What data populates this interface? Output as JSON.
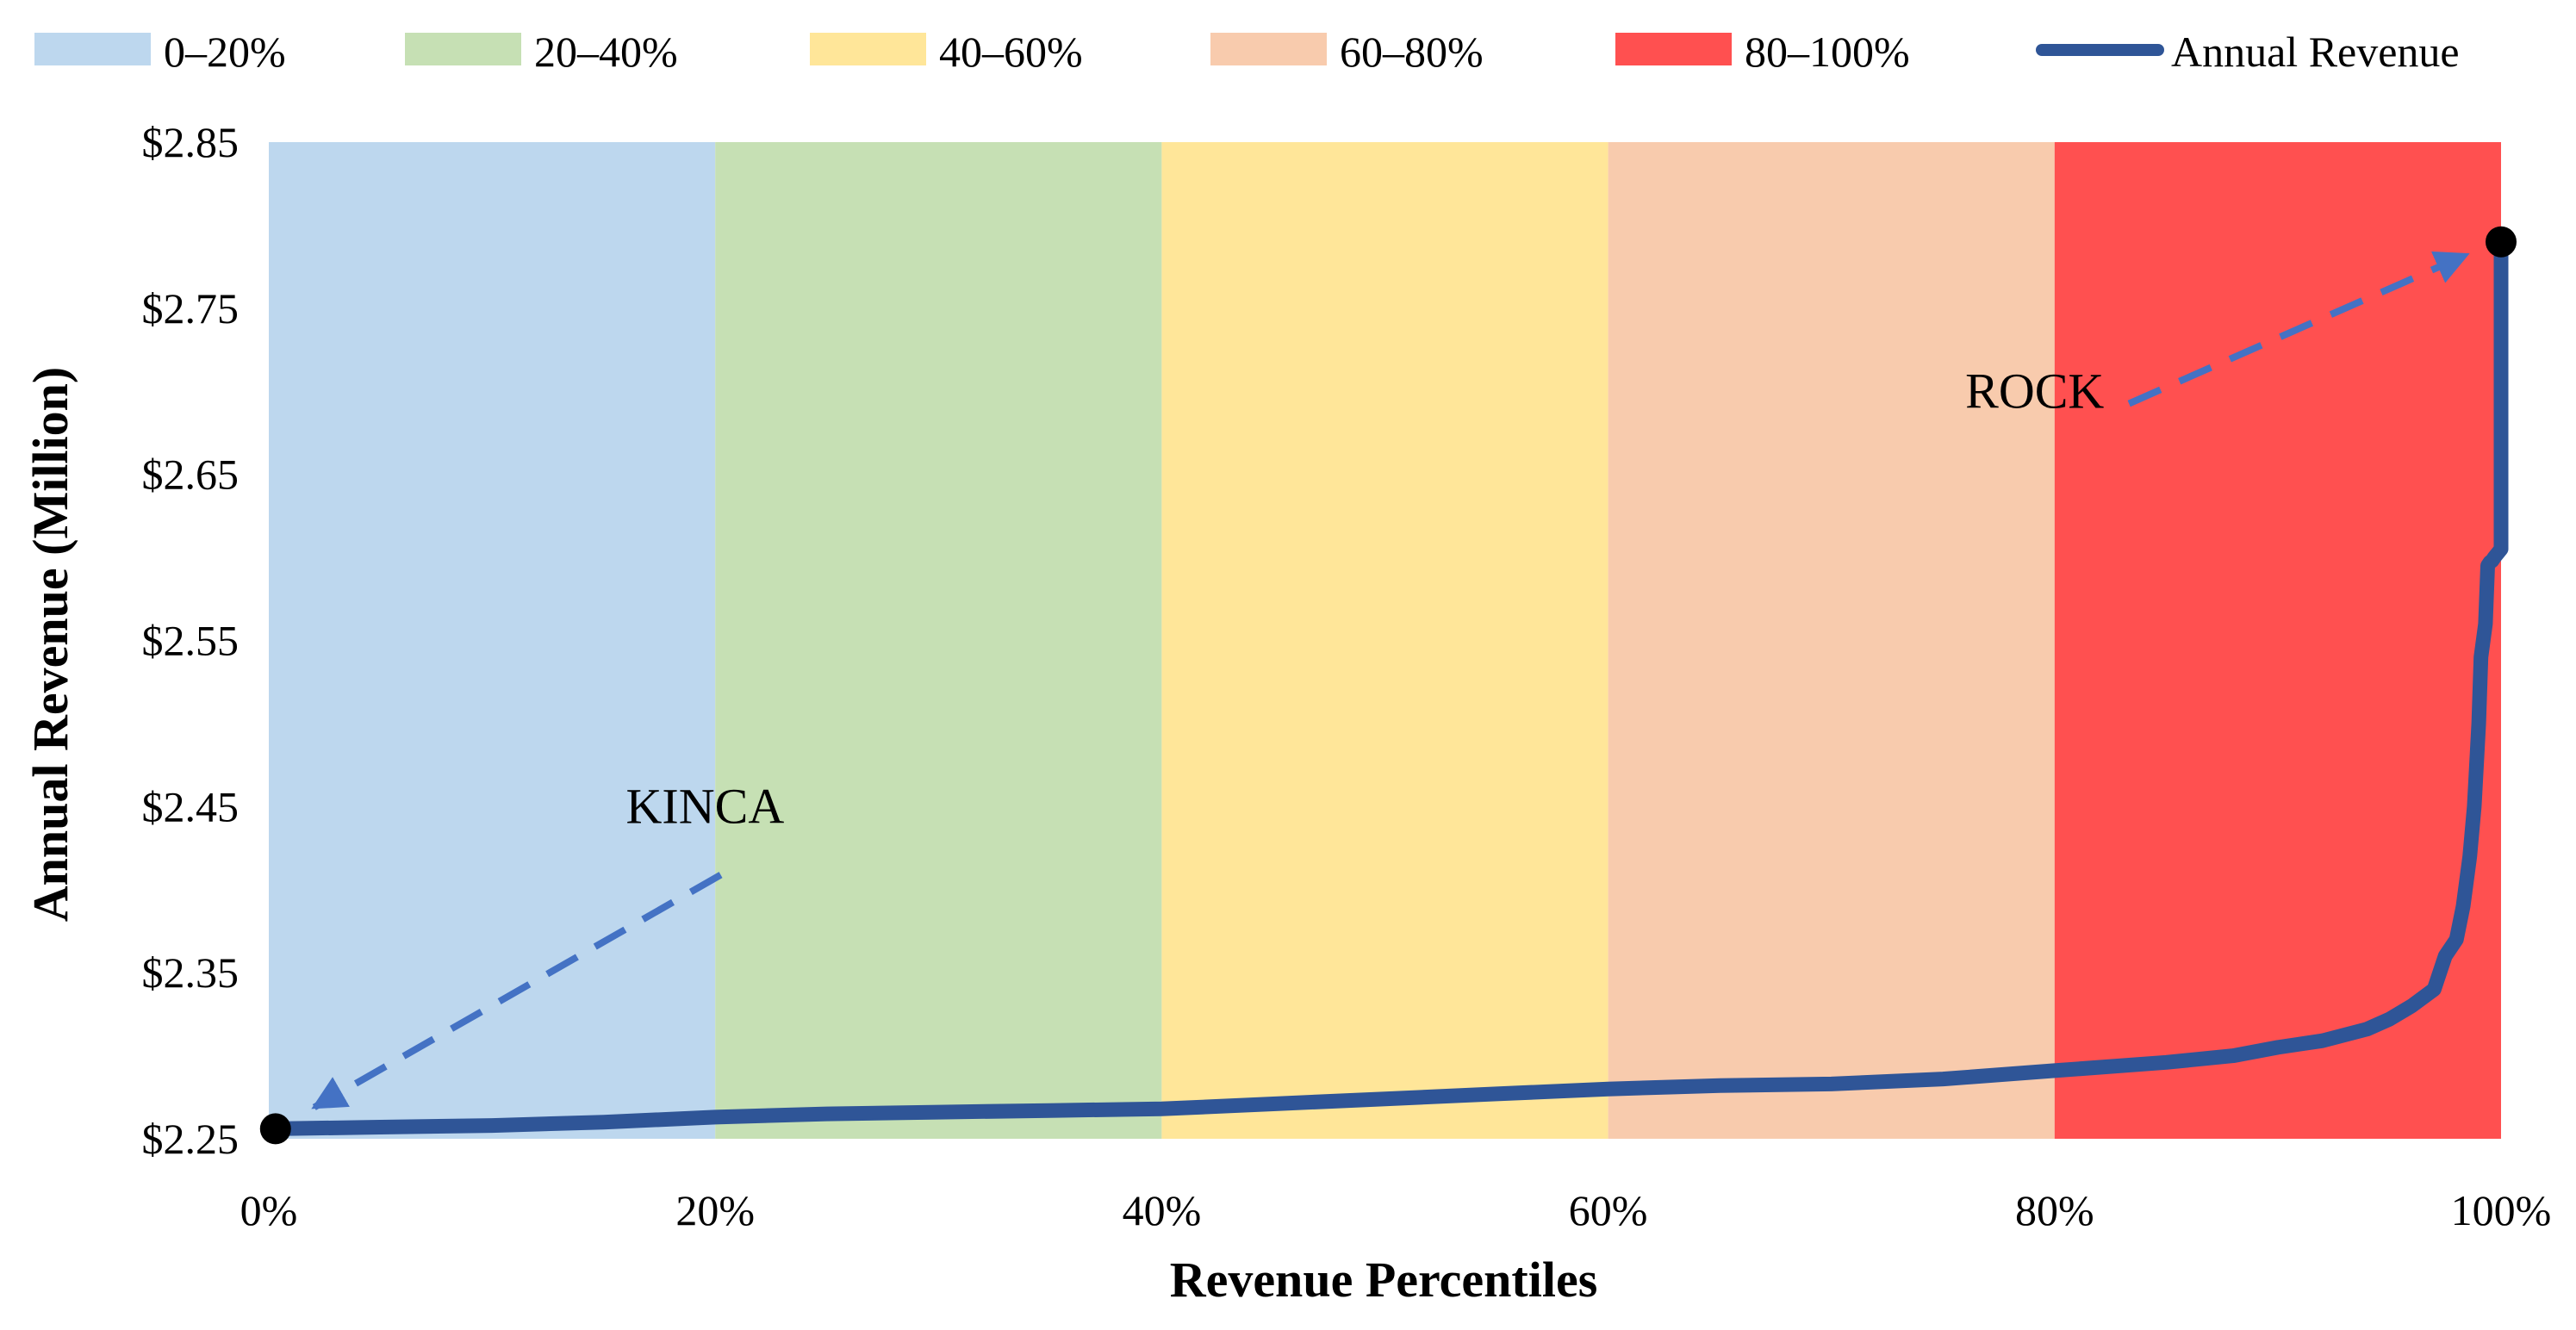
{
  "chart_data": {
    "type": "line",
    "title": "",
    "xlabel": "Revenue Percentiles",
    "ylabel": "Annual Revenue (Million)",
    "xlim": [
      0,
      100
    ],
    "ylim": [
      2.25,
      2.85
    ],
    "x_ticks": [
      0,
      20,
      40,
      60,
      80,
      100
    ],
    "x_tick_labels": [
      "0%",
      "20%",
      "40%",
      "60%",
      "80%",
      "100%"
    ],
    "y_ticks": [
      2.25,
      2.35,
      2.45,
      2.55,
      2.65,
      2.75,
      2.85
    ],
    "y_tick_labels": [
      "$2.25",
      "$2.35",
      "$2.45",
      "$2.55",
      "$2.65",
      "$2.75",
      "$2.85"
    ],
    "grid": false,
    "legend_position": "top",
    "bands": [
      {
        "label": "0–20%",
        "from": 0,
        "to": 20,
        "color": "#BDD7EE"
      },
      {
        "label": "20–40%",
        "from": 20,
        "to": 40,
        "color": "#C6E0B4"
      },
      {
        "label": "40–60%",
        "from": 40,
        "to": 60,
        "color": "#FFE699"
      },
      {
        "label": "60–80%",
        "from": 60,
        "to": 80,
        "color": "#F8CBAD"
      },
      {
        "label": "80–100%",
        "from": 80,
        "to": 100,
        "color": "#FF5050"
      }
    ],
    "series": [
      {
        "name": "Annual Revenue",
        "color": "#2F5597",
        "x": [
          0.3,
          5,
          10,
          15,
          20,
          25,
          30,
          35,
          40,
          45,
          50,
          55,
          60,
          65,
          70,
          75,
          80,
          85,
          88,
          90,
          92,
          94,
          95,
          96,
          97,
          97.5,
          98,
          98.3,
          98.6,
          98.8,
          99,
          99.1,
          99.3,
          99.4,
          99.5,
          99.6,
          99.7,
          100,
          100
        ],
        "values": [
          2.256,
          2.257,
          2.258,
          2.26,
          2.263,
          2.265,
          2.266,
          2.267,
          2.268,
          2.271,
          2.274,
          2.277,
          2.28,
          2.282,
          2.283,
          2.286,
          2.291,
          2.296,
          2.3,
          2.305,
          2.309,
          2.316,
          2.322,
          2.33,
          2.34,
          2.36,
          2.37,
          2.39,
          2.42,
          2.45,
          2.5,
          2.54,
          2.56,
          2.595,
          2.597,
          2.598,
          2.6,
          2.605,
          2.79
        ]
      }
    ],
    "points": [
      {
        "name": "KINCA",
        "x": 0.3,
        "y": 2.256
      },
      {
        "name": "ROCK",
        "x": 100,
        "y": 2.79
      }
    ],
    "annotations": [
      {
        "text": "KINCA",
        "label_x": 16,
        "label_y": 2.44
      },
      {
        "text": "ROCK",
        "label_x": 76,
        "label_y": 2.69
      }
    ]
  }
}
